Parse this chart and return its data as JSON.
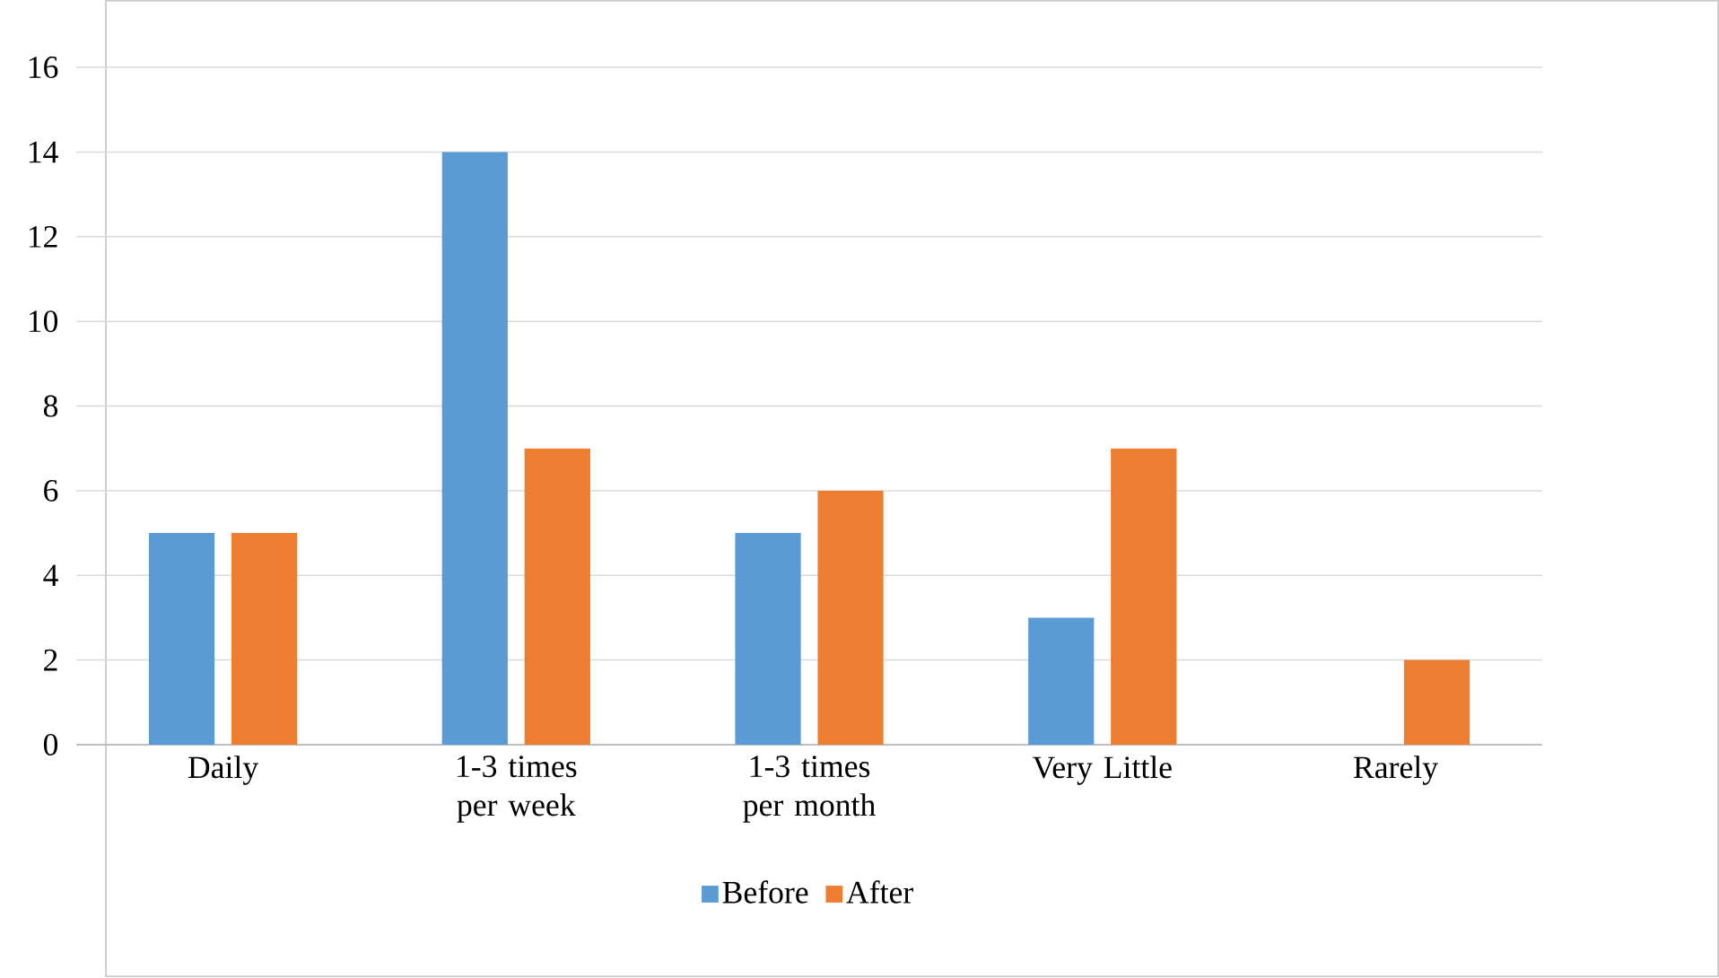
{
  "chart_data": {
    "type": "bar",
    "categories": [
      "Daily",
      "1-3 times per week",
      "1-3 times per month",
      "Very Little",
      "Rarely"
    ],
    "series": [
      {
        "name": "Before",
        "color": "#5b9bd5",
        "values": [
          5,
          14,
          5,
          3,
          0
        ]
      },
      {
        "name": "After",
        "color": "#ed7d31",
        "values": [
          5,
          7,
          6,
          7,
          2
        ]
      }
    ],
    "ylim": [
      0,
      16
    ],
    "yticks": [
      0,
      2,
      4,
      6,
      8,
      10,
      12,
      14,
      16
    ],
    "grid": "y",
    "legend": "bottom"
  }
}
